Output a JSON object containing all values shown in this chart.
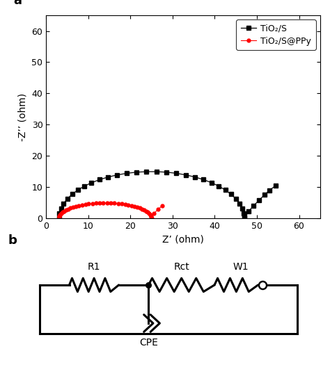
{
  "panel_a_label": "a",
  "panel_b_label": "b",
  "xlabel": "Z’ (ohm)",
  "ylabel": "-Z’’ (ohm)",
  "xlim": [
    0,
    65
  ],
  "ylim": [
    0,
    65
  ],
  "xticks": [
    0,
    10,
    20,
    30,
    40,
    50,
    60
  ],
  "yticks": [
    0,
    10,
    20,
    30,
    40,
    50,
    60
  ],
  "black_series_label": "TiO₂/S",
  "red_series_label": "TiO₂/S@PPy",
  "black_color": "#000000",
  "red_color": "#ff0000",
  "circuit_labels": [
    "R1",
    "Rct",
    "W1",
    "CPE"
  ],
  "circuit_label_color": "#000000"
}
